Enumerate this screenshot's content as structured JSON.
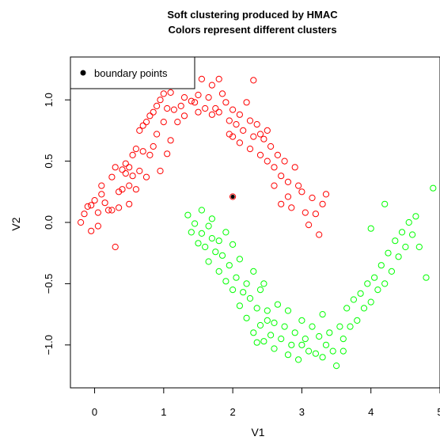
{
  "chart_data": {
    "type": "scatter",
    "title": "Soft clustering produced by HMAC",
    "subtitle": "Colors represent different clusters",
    "xlabel": "V1",
    "ylabel": "V2",
    "xlim": [
      -0.35,
      5.0
    ],
    "ylim": [
      -1.35,
      1.35
    ],
    "xticks": [
      0,
      1,
      2,
      3,
      4,
      5
    ],
    "yticks": [
      -1.0,
      -0.5,
      0.0,
      0.5,
      1.0
    ],
    "legend": {
      "position": "top-left",
      "entries": [
        {
          "label": "boundary points",
          "marker": "filled-circle",
          "color": "#000000"
        }
      ]
    },
    "series": [
      {
        "color": "#ff0000",
        "marker": "open-circle",
        "points": [
          [
            -0.2,
            0.0
          ],
          [
            -0.15,
            0.07
          ],
          [
            -0.1,
            0.13
          ],
          [
            -0.05,
            0.14
          ],
          [
            -0.05,
            -0.07
          ],
          [
            0.0,
            0.18
          ],
          [
            0.05,
            0.08
          ],
          [
            0.05,
            -0.03
          ],
          [
            0.1,
            0.23
          ],
          [
            0.1,
            0.3
          ],
          [
            0.15,
            0.16
          ],
          [
            0.2,
            0.1
          ],
          [
            0.25,
            0.1
          ],
          [
            0.25,
            0.37
          ],
          [
            0.3,
            0.45
          ],
          [
            0.3,
            -0.2
          ],
          [
            0.35,
            0.25
          ],
          [
            0.35,
            0.12
          ],
          [
            0.4,
            0.27
          ],
          [
            0.4,
            0.43
          ],
          [
            0.45,
            0.48
          ],
          [
            0.45,
            0.4
          ],
          [
            0.5,
            0.45
          ],
          [
            0.5,
            0.3
          ],
          [
            0.5,
            0.15
          ],
          [
            0.55,
            0.55
          ],
          [
            0.55,
            0.38
          ],
          [
            0.6,
            0.27
          ],
          [
            0.6,
            0.6
          ],
          [
            0.65,
            0.42
          ],
          [
            0.65,
            0.75
          ],
          [
            0.7,
            0.79
          ],
          [
            0.7,
            0.58
          ],
          [
            0.75,
            0.37
          ],
          [
            0.75,
            0.82
          ],
          [
            0.8,
            0.87
          ],
          [
            0.8,
            0.55
          ],
          [
            0.85,
            0.62
          ],
          [
            0.85,
            0.9
          ],
          [
            0.9,
            0.95
          ],
          [
            0.9,
            0.72
          ],
          [
            0.95,
            0.42
          ],
          [
            0.95,
            1.0
          ],
          [
            1.0,
            1.05
          ],
          [
            1.0,
            0.82
          ],
          [
            1.05,
            0.93
          ],
          [
            1.05,
            0.56
          ],
          [
            1.1,
            0.67
          ],
          [
            1.1,
            1.06
          ],
          [
            1.15,
            0.92
          ],
          [
            1.2,
            0.82
          ],
          [
            1.2,
            1.2
          ],
          [
            1.25,
            0.95
          ],
          [
            1.3,
            1.02
          ],
          [
            1.3,
            0.87
          ],
          [
            1.35,
            1.14
          ],
          [
            1.4,
            0.99
          ],
          [
            1.45,
            0.98
          ],
          [
            1.5,
            1.04
          ],
          [
            1.5,
            0.9
          ],
          [
            1.55,
            1.17
          ],
          [
            1.6,
            0.93
          ],
          [
            1.65,
            1.02
          ],
          [
            1.7,
            1.12
          ],
          [
            1.7,
            0.88
          ],
          [
            1.75,
            0.93
          ],
          [
            1.8,
            1.17
          ],
          [
            1.8,
            0.9
          ],
          [
            1.85,
            1.05
          ],
          [
            1.9,
            0.98
          ],
          [
            1.95,
            0.83
          ],
          [
            1.95,
            0.72
          ],
          [
            2.0,
            0.92
          ],
          [
            2.0,
            0.7
          ],
          [
            2.05,
            0.8
          ],
          [
            2.1,
            0.88
          ],
          [
            2.1,
            0.65
          ],
          [
            2.15,
            0.75
          ],
          [
            2.2,
            0.98
          ],
          [
            2.25,
            0.83
          ],
          [
            2.25,
            0.6
          ],
          [
            2.3,
            0.7
          ],
          [
            2.3,
            1.16
          ],
          [
            2.35,
            0.8
          ],
          [
            2.4,
            0.72
          ],
          [
            2.4,
            0.55
          ],
          [
            2.45,
            0.68
          ],
          [
            2.5,
            0.5
          ],
          [
            2.5,
            0.75
          ],
          [
            2.55,
            0.62
          ],
          [
            2.6,
            0.45
          ],
          [
            2.6,
            0.3
          ],
          [
            2.65,
            0.55
          ],
          [
            2.7,
            0.38
          ],
          [
            2.7,
            0.15
          ],
          [
            2.75,
            0.5
          ],
          [
            2.8,
            0.33
          ],
          [
            2.8,
            0.21
          ],
          [
            2.85,
            0.12
          ],
          [
            2.9,
            0.45
          ],
          [
            2.95,
            0.3
          ],
          [
            3.0,
            0.25
          ],
          [
            3.05,
            0.08
          ],
          [
            3.1,
            -0.02
          ],
          [
            3.15,
            0.2
          ],
          [
            3.2,
            0.07
          ],
          [
            3.25,
            -0.1
          ],
          [
            3.3,
            0.15
          ],
          [
            3.35,
            0.23
          ]
        ]
      },
      {
        "color": "#00ff00",
        "marker": "open-circle",
        "points": [
          [
            1.35,
            0.06
          ],
          [
            1.4,
            -0.08
          ],
          [
            1.45,
            -0.01
          ],
          [
            1.5,
            -0.17
          ],
          [
            1.55,
            0.1
          ],
          [
            1.55,
            -0.09
          ],
          [
            1.6,
            -0.2
          ],
          [
            1.65,
            -0.03
          ],
          [
            1.65,
            -0.32
          ],
          [
            1.7,
            -0.13
          ],
          [
            1.7,
            0.03
          ],
          [
            1.75,
            -0.24
          ],
          [
            1.8,
            -0.4
          ],
          [
            1.8,
            -0.15
          ],
          [
            1.85,
            -0.27
          ],
          [
            1.9,
            -0.48
          ],
          [
            1.9,
            -0.08
          ],
          [
            1.95,
            -0.35
          ],
          [
            2.0,
            -0.55
          ],
          [
            2.0,
            -0.18
          ],
          [
            2.05,
            -0.45
          ],
          [
            2.1,
            -0.68
          ],
          [
            2.1,
            -0.3
          ],
          [
            2.15,
            -0.57
          ],
          [
            2.2,
            -0.78
          ],
          [
            2.2,
            -0.5
          ],
          [
            2.25,
            -0.62
          ],
          [
            2.3,
            -0.4
          ],
          [
            2.3,
            -0.9
          ],
          [
            2.35,
            -0.7
          ],
          [
            2.4,
            -0.84
          ],
          [
            2.4,
            -0.55
          ],
          [
            2.45,
            -0.97
          ],
          [
            2.5,
            -0.72
          ],
          [
            2.5,
            -0.8
          ],
          [
            2.55,
            -0.92
          ],
          [
            2.6,
            -1.03
          ],
          [
            2.6,
            -0.82
          ],
          [
            2.65,
            -0.67
          ],
          [
            2.7,
            -0.95
          ],
          [
            2.75,
            -0.85
          ],
          [
            2.8,
            -1.08
          ],
          [
            2.8,
            -0.72
          ],
          [
            2.85,
            -1.0
          ],
          [
            2.9,
            -0.9
          ],
          [
            2.95,
            -1.12
          ],
          [
            3.0,
            -0.8
          ],
          [
            3.0,
            -1.0
          ],
          [
            3.05,
            -0.95
          ],
          [
            3.1,
            -1.05
          ],
          [
            3.15,
            -0.85
          ],
          [
            3.2,
            -1.07
          ],
          [
            3.25,
            -0.93
          ],
          [
            3.3,
            -1.1
          ],
          [
            3.3,
            -0.75
          ],
          [
            3.35,
            -1.0
          ],
          [
            3.4,
            -0.9
          ],
          [
            3.45,
            -1.05
          ],
          [
            3.5,
            -1.17
          ],
          [
            3.55,
            -0.85
          ],
          [
            3.6,
            -0.95
          ],
          [
            3.65,
            -0.7
          ],
          [
            3.7,
            -0.85
          ],
          [
            3.75,
            -0.63
          ],
          [
            3.8,
            -0.8
          ],
          [
            3.85,
            -0.58
          ],
          [
            3.9,
            -0.7
          ],
          [
            3.95,
            -0.5
          ],
          [
            4.0,
            -0.65
          ],
          [
            4.05,
            -0.45
          ],
          [
            4.1,
            -0.55
          ],
          [
            4.15,
            -0.35
          ],
          [
            4.2,
            -0.5
          ],
          [
            4.25,
            -0.25
          ],
          [
            4.3,
            -0.4
          ],
          [
            4.35,
            -0.15
          ],
          [
            4.4,
            -0.28
          ],
          [
            4.45,
            -0.08
          ],
          [
            4.5,
            -0.2
          ],
          [
            4.55,
            0.0
          ],
          [
            4.6,
            -0.1
          ],
          [
            4.65,
            0.05
          ],
          [
            4.7,
            -0.2
          ],
          [
            4.8,
            -0.45
          ],
          [
            4.9,
            0.28
          ],
          [
            2.35,
            -0.98
          ],
          [
            2.45,
            -0.5
          ],
          [
            3.6,
            -1.05
          ],
          [
            4.0,
            -0.05
          ],
          [
            4.2,
            0.15
          ]
        ]
      }
    ],
    "boundary_points": [
      [
        2.0,
        0.21
      ]
    ]
  }
}
